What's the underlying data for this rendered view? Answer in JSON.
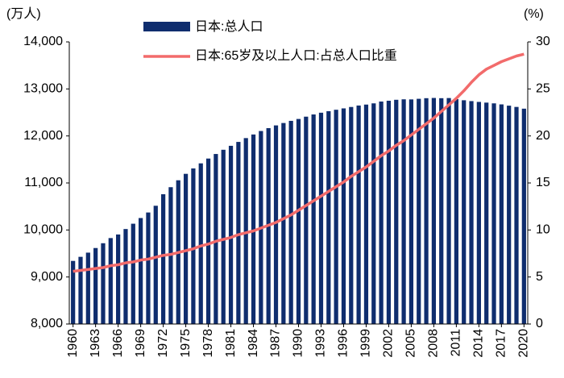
{
  "chart_data": {
    "type": "bar_line",
    "y_unit": "(万人)",
    "y2_unit": "(%)",
    "categories": [
      "1960",
      null,
      null,
      "1963",
      null,
      null,
      "1966",
      null,
      null,
      "1969",
      null,
      null,
      "1972",
      null,
      null,
      "1975",
      null,
      null,
      "1978",
      null,
      null,
      "1981",
      null,
      null,
      "1984",
      null,
      null,
      "1987",
      null,
      null,
      "1990",
      null,
      null,
      "1993",
      null,
      null,
      "1996",
      null,
      null,
      "1999",
      null,
      null,
      "2002",
      null,
      null,
      "2005",
      null,
      null,
      "2008",
      null,
      null,
      "2011",
      null,
      null,
      "2014",
      null,
      null,
      "2017",
      null,
      null,
      "2020"
    ],
    "series": [
      {
        "name": "日本:总人口",
        "type": "bar",
        "color": "#0f2d6e",
        "values": [
          9342,
          9429,
          9518,
          9616,
          9718,
          9828,
          9904,
          10020,
          10133,
          10254,
          10372,
          10515,
          10760,
          10910,
          11057,
          11194,
          11309,
          11417,
          11519,
          11616,
          11706,
          11790,
          11873,
          11954,
          12031,
          12105,
          12166,
          12224,
          12275,
          12321,
          12361,
          12410,
          12457,
          12494,
          12527,
          12557,
          12586,
          12616,
          12647,
          12667,
          12693,
          12732,
          12749,
          12769,
          12779,
          12777,
          12790,
          12803,
          12808,
          12803,
          12806,
          12783,
          12759,
          12741,
          12724,
          12709,
          12693,
          12671,
          12644,
          12617,
          12580
        ]
      },
      {
        "name": "日本:65岁及以上人口:占总人口比重",
        "type": "line",
        "axis": "y2",
        "color": "#f26b6b",
        "values": [
          5.6,
          5.7,
          5.8,
          5.9,
          6.0,
          6.2,
          6.3,
          6.5,
          6.6,
          6.8,
          6.9,
          7.1,
          7.3,
          7.4,
          7.6,
          7.8,
          8.0,
          8.3,
          8.5,
          8.8,
          9.0,
          9.2,
          9.5,
          9.7,
          9.9,
          10.2,
          10.5,
          10.8,
          11.2,
          11.6,
          12.1,
          12.6,
          13.1,
          13.6,
          14.1,
          14.6,
          15.1,
          15.7,
          16.2,
          16.7,
          17.3,
          17.9,
          18.4,
          19.0,
          19.5,
          20.1,
          20.7,
          21.3,
          21.9,
          22.6,
          23.3,
          24.0,
          24.8,
          25.7,
          26.5,
          27.1,
          27.5,
          27.9,
          28.2,
          28.5,
          28.7
        ]
      }
    ],
    "ylim": [
      8000,
      14000
    ],
    "yticks": [
      {
        "value": 8000,
        "label": "8,000"
      },
      {
        "value": 9000,
        "label": "9,000"
      },
      {
        "value": 10000,
        "label": "10,000"
      },
      {
        "value": 11000,
        "label": "11,000"
      },
      {
        "value": 12000,
        "label": "12,000"
      },
      {
        "value": 13000,
        "label": "13,000"
      },
      {
        "value": 14000,
        "label": "14,000"
      }
    ],
    "y2lim": [
      0,
      30
    ],
    "y2ticks": [
      0,
      5,
      10,
      15,
      20,
      25,
      30
    ]
  }
}
